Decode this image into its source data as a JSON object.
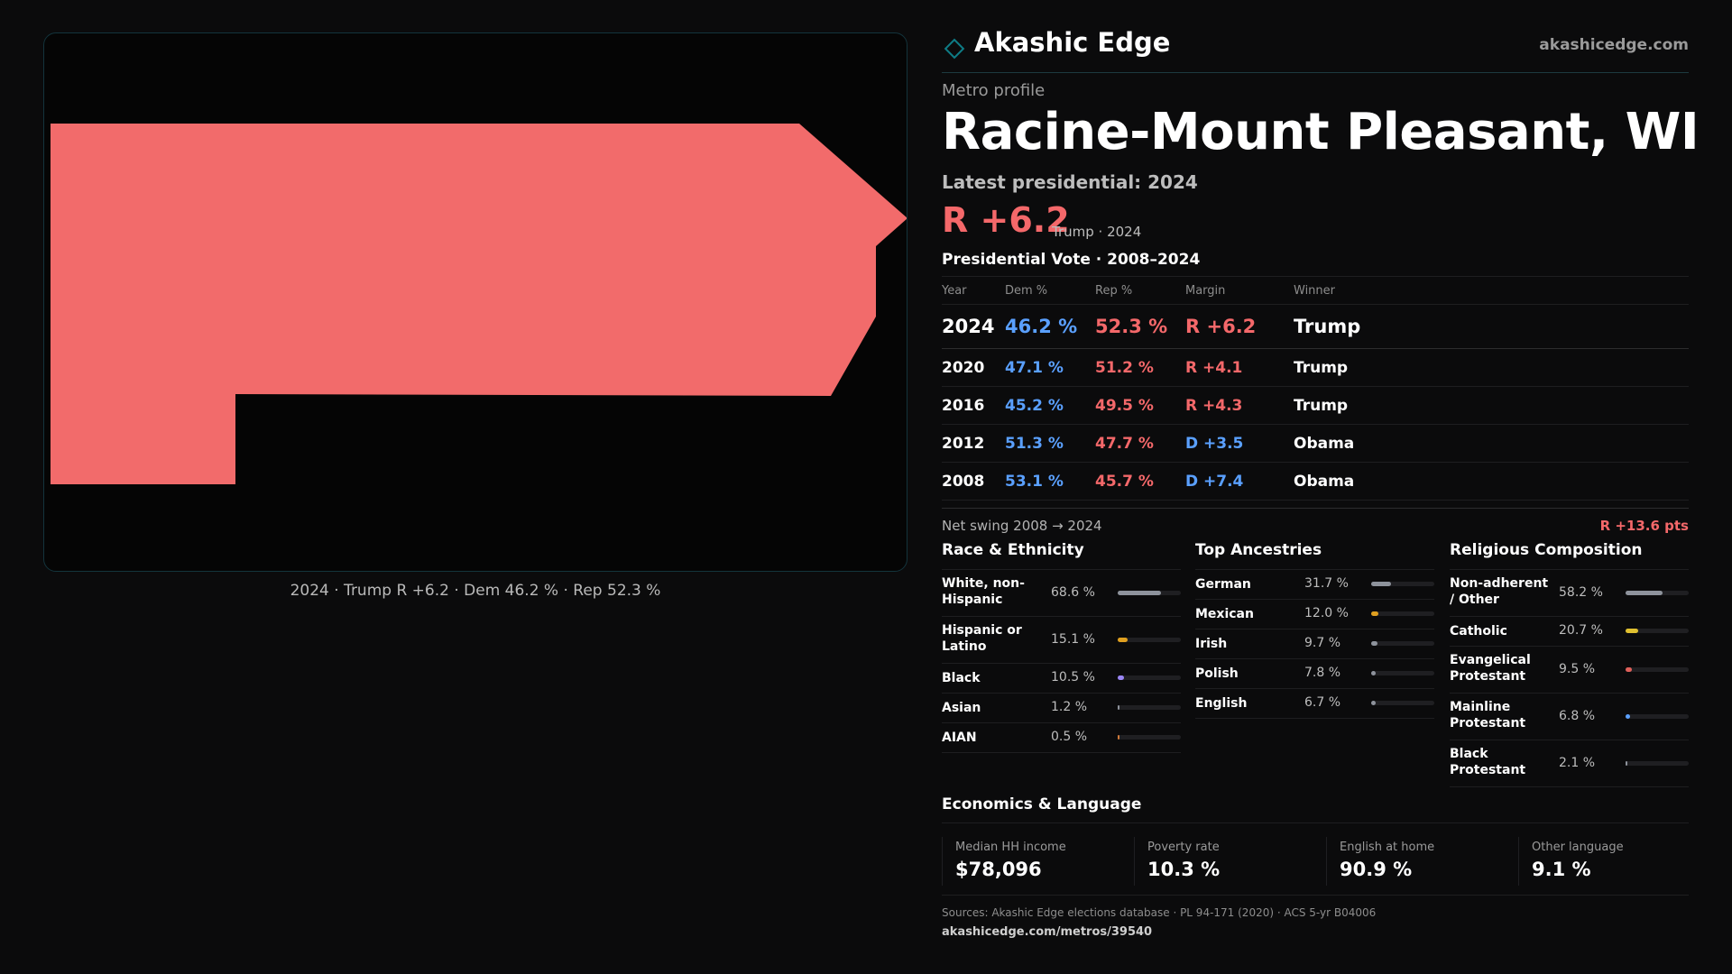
{
  "brand": {
    "name": "Akashic Edge",
    "url": "akashicedge.com",
    "accent": "#0e7c86"
  },
  "profile": {
    "eyebrow": "Metro profile",
    "title": "Racine-Mount Pleasant, WI",
    "latest_label": "Latest presidential: 2024",
    "headline_margin": "R +6.2",
    "headline_sub": "Trump · 2024"
  },
  "map": {
    "fill_color": "#f26b6b",
    "caption": "2024 · Trump R +6.2 · Dem 46.2 % · Rep 52.3 %"
  },
  "votes": {
    "title": "Presidential Vote · 2008–2024",
    "headers": {
      "year": "Year",
      "dem": "Dem %",
      "rep": "Rep %",
      "margin": "Margin",
      "winner": "Winner"
    },
    "rows": [
      {
        "year": "2024",
        "dem": "46.2 %",
        "rep": "52.3 %",
        "margin": "R +6.2",
        "winner": "Trump"
      },
      {
        "year": "2020",
        "dem": "47.1 %",
        "rep": "51.2 %",
        "margin": "R +4.1",
        "winner": "Trump"
      },
      {
        "year": "2016",
        "dem": "45.2 %",
        "rep": "49.5 %",
        "margin": "R +4.3",
        "winner": "Trump"
      },
      {
        "year": "2012",
        "dem": "51.3 %",
        "rep": "47.7 %",
        "margin": "D +3.5",
        "winner": "Obama"
      },
      {
        "year": "2008",
        "dem": "53.1 %",
        "rep": "45.7 %",
        "margin": "D +7.4",
        "winner": "Obama"
      }
    ],
    "colors": {
      "dem": "#5aa0ff",
      "rep": "#f4686a"
    }
  },
  "swing": {
    "label": "Net swing 2008 → 2024",
    "value": "R +13.6 pts"
  },
  "race": {
    "title": "Race & Ethnicity",
    "rows": [
      {
        "label": "White, non-Hispanic",
        "value": "68.6 %",
        "fraction": 0.686,
        "color": "#8e939c"
      },
      {
        "label": "Hispanic or Latino",
        "value": "15.1 %",
        "fraction": 0.151,
        "color": "#e0a020"
      },
      {
        "label": "Black",
        "value": "10.5 %",
        "fraction": 0.105,
        "color": "#9a86f5"
      },
      {
        "label": "Asian",
        "value": "1.2 %",
        "fraction": 0.012,
        "color": "#8e939c"
      },
      {
        "label": "AIAN",
        "value": "0.5 %",
        "fraction": 0.005,
        "color": "#d07a3a"
      }
    ]
  },
  "ancestry": {
    "title": "Top Ancestries",
    "rows": [
      {
        "label": "German",
        "value": "31.7 %",
        "fraction": 0.317,
        "color": "#8e939c"
      },
      {
        "label": "Mexican",
        "value": "12.0 %",
        "fraction": 0.12,
        "color": "#e0a020"
      },
      {
        "label": "Irish",
        "value": "9.7 %",
        "fraction": 0.097,
        "color": "#8e939c"
      },
      {
        "label": "Polish",
        "value": "7.8 %",
        "fraction": 0.078,
        "color": "#8e939c"
      },
      {
        "label": "English",
        "value": "6.7 %",
        "fraction": 0.067,
        "color": "#8e939c"
      }
    ]
  },
  "religion": {
    "title": "Religious Composition",
    "rows": [
      {
        "label": "Non-adherent / Other",
        "value": "58.2 %",
        "fraction": 0.582,
        "color": "#8e939c"
      },
      {
        "label": "Catholic",
        "value": "20.7 %",
        "fraction": 0.207,
        "color": "#e0c030"
      },
      {
        "label": "Evangelical Protestant",
        "value": "9.5 %",
        "fraction": 0.095,
        "color": "#e0605a"
      },
      {
        "label": "Mainline Protestant",
        "value": "6.8 %",
        "fraction": 0.068,
        "color": "#5aa0ff"
      },
      {
        "label": "Black Protestant",
        "value": "2.1 %",
        "fraction": 0.021,
        "color": "#8e939c"
      }
    ]
  },
  "economics": {
    "title": "Economics & Language",
    "cards": [
      {
        "label": "Median HH income",
        "value": "$78,096"
      },
      {
        "label": "Poverty rate",
        "value": "10.3 %"
      },
      {
        "label": "English at home",
        "value": "90.9 %"
      },
      {
        "label": "Other language",
        "value": "9.1 %"
      }
    ]
  },
  "footer": {
    "sources": "Sources: Akashic Edge elections database · PL 94-171 (2020) · ACS 5-yr B04006",
    "url": "akashicedge.com/metros/39540"
  }
}
